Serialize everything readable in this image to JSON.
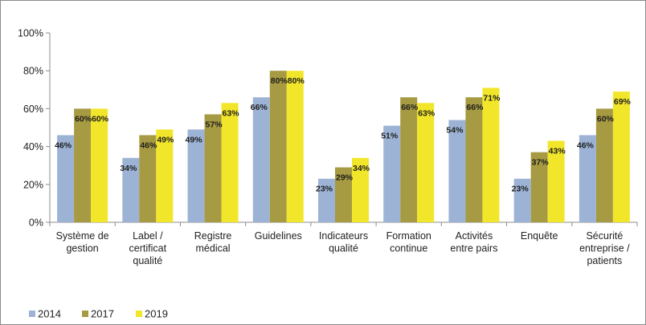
{
  "chart_data": {
    "type": "bar",
    "categories": [
      [
        "Système de",
        "gestion"
      ],
      [
        "Label /",
        "certificat",
        "qualité"
      ],
      [
        "Registre",
        "médical"
      ],
      [
        "Guidelines"
      ],
      [
        "Indicateurs",
        "qualité"
      ],
      [
        "Formation",
        "continue"
      ],
      [
        "Activités",
        "entre pairs"
      ],
      [
        "Enquête"
      ],
      [
        "Sécurité",
        "entreprise /",
        "patients"
      ]
    ],
    "series": [
      {
        "name": "2014",
        "color": "#9db3d6",
        "values": [
          46,
          34,
          49,
          66,
          23,
          51,
          54,
          23,
          46
        ]
      },
      {
        "name": "2017",
        "color": "#a69a42",
        "values": [
          60,
          46,
          57,
          80,
          29,
          66,
          66,
          37,
          60
        ]
      },
      {
        "name": "2019",
        "color": "#f2e62a",
        "values": [
          60,
          49,
          63,
          80,
          34,
          63,
          71,
          43,
          69
        ]
      }
    ],
    "y_ticks": [
      "0%",
      "20%",
      "40%",
      "60%",
      "80%",
      "100%"
    ],
    "ylim": [
      0,
      100
    ],
    "value_suffix": "%",
    "grid": false,
    "legend_position": "bottom-left"
  }
}
